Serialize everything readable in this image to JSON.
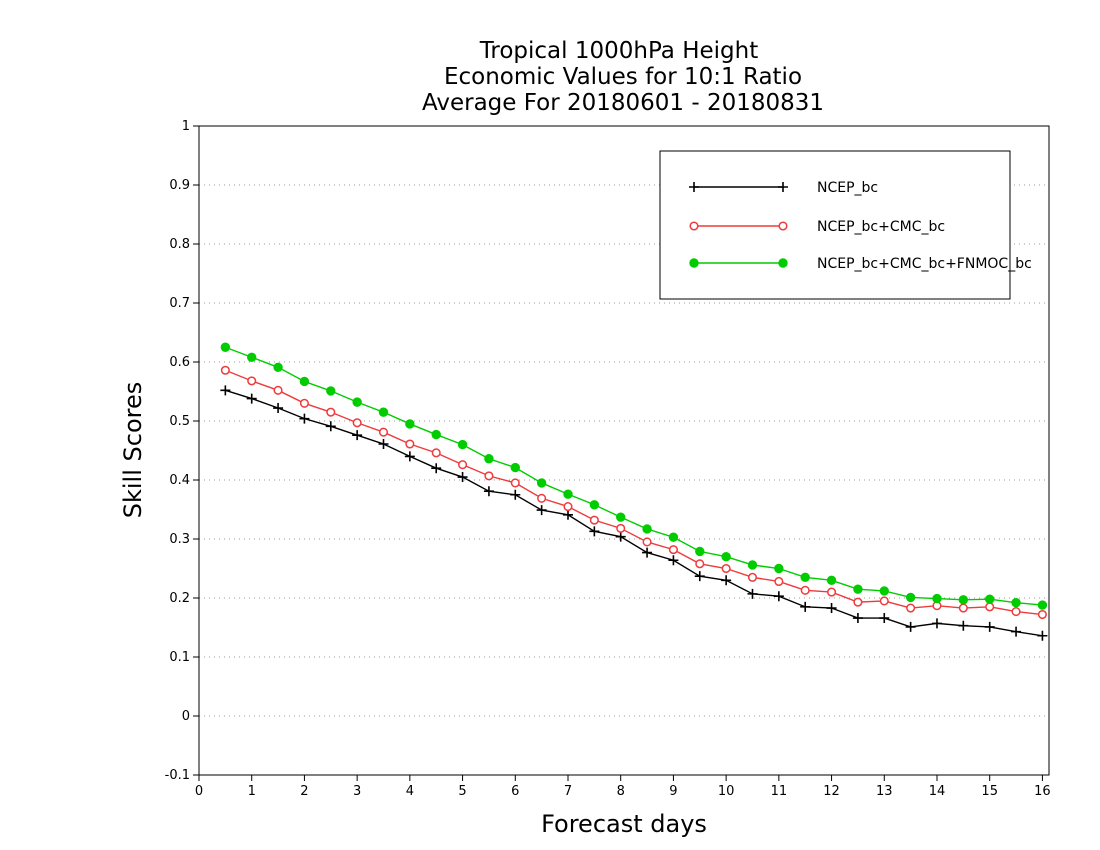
{
  "chart_data": {
    "type": "line",
    "title_lines": [
      "Tropical 1000hPa Height",
      "Economic Values for 10:1 Ratio",
      "Average For 20180601 - 20180831"
    ],
    "xlabel": "Forecast days",
    "ylabel": "Skill Scores",
    "xlim": [
      0,
      16.125
    ],
    "ylim": [
      -0.1,
      1
    ],
    "xticks": [
      0,
      1,
      2,
      3,
      4,
      5,
      6,
      7,
      8,
      9,
      10,
      11,
      12,
      13,
      14,
      15,
      16
    ],
    "xtick_labels": [
      "0",
      "1",
      "2",
      "3",
      "4",
      "5",
      "6",
      "7",
      "8",
      "9",
      "10",
      "11",
      "12",
      "13",
      "14",
      "15",
      "16"
    ],
    "yticks": [
      -0.1,
      0,
      0.1,
      0.2,
      0.3,
      0.4,
      0.5,
      0.6,
      0.7,
      0.8,
      0.9,
      1
    ],
    "ytick_labels": [
      "-0.1",
      "0",
      "0.1",
      "0.2",
      "0.3",
      "0.4",
      "0.5",
      "0.6",
      "0.7",
      "0.8",
      "0.9",
      "1"
    ],
    "grid": "horizontal dotted",
    "legend_position": "top-right",
    "x": [
      0.5,
      1,
      1.5,
      2,
      2.5,
      3,
      3.5,
      4,
      4.5,
      5,
      5.5,
      6,
      6.5,
      7,
      7.5,
      8,
      8.5,
      9,
      9.5,
      10,
      10.5,
      11,
      11.5,
      12,
      12.5,
      13,
      13.5,
      14,
      14.5,
      15,
      15.5,
      16
    ],
    "series": [
      {
        "name": "NCEP_bc",
        "color": "#000000",
        "marker": "plus",
        "values": [
          0.552,
          0.538,
          0.522,
          0.504,
          0.491,
          0.476,
          0.461,
          0.44,
          0.42,
          0.405,
          0.381,
          0.375,
          0.349,
          0.341,
          0.313,
          0.304,
          0.277,
          0.264,
          0.237,
          0.23,
          0.207,
          0.203,
          0.185,
          0.183,
          0.166,
          0.166,
          0.151,
          0.157,
          0.153,
          0.151,
          0.143,
          0.136
        ]
      },
      {
        "name": "NCEP_bc+CMC_bc",
        "color": "#ee3b3b",
        "marker": "open-circle",
        "values": [
          0.586,
          0.568,
          0.552,
          0.53,
          0.515,
          0.497,
          0.481,
          0.461,
          0.446,
          0.426,
          0.407,
          0.395,
          0.369,
          0.355,
          0.332,
          0.318,
          0.295,
          0.282,
          0.258,
          0.25,
          0.235,
          0.228,
          0.213,
          0.21,
          0.193,
          0.195,
          0.183,
          0.187,
          0.183,
          0.185,
          0.177,
          0.172
        ]
      },
      {
        "name": "NCEP_bc+CMC_bc+FNMOC_bc",
        "color": "#00cc00",
        "marker": "filled-circle",
        "values": [
          0.625,
          0.608,
          0.591,
          0.567,
          0.551,
          0.532,
          0.515,
          0.495,
          0.477,
          0.46,
          0.436,
          0.421,
          0.395,
          0.376,
          0.358,
          0.337,
          0.317,
          0.303,
          0.279,
          0.27,
          0.256,
          0.25,
          0.235,
          0.23,
          0.215,
          0.212,
          0.201,
          0.199,
          0.197,
          0.198,
          0.192,
          0.188
        ]
      }
    ]
  }
}
